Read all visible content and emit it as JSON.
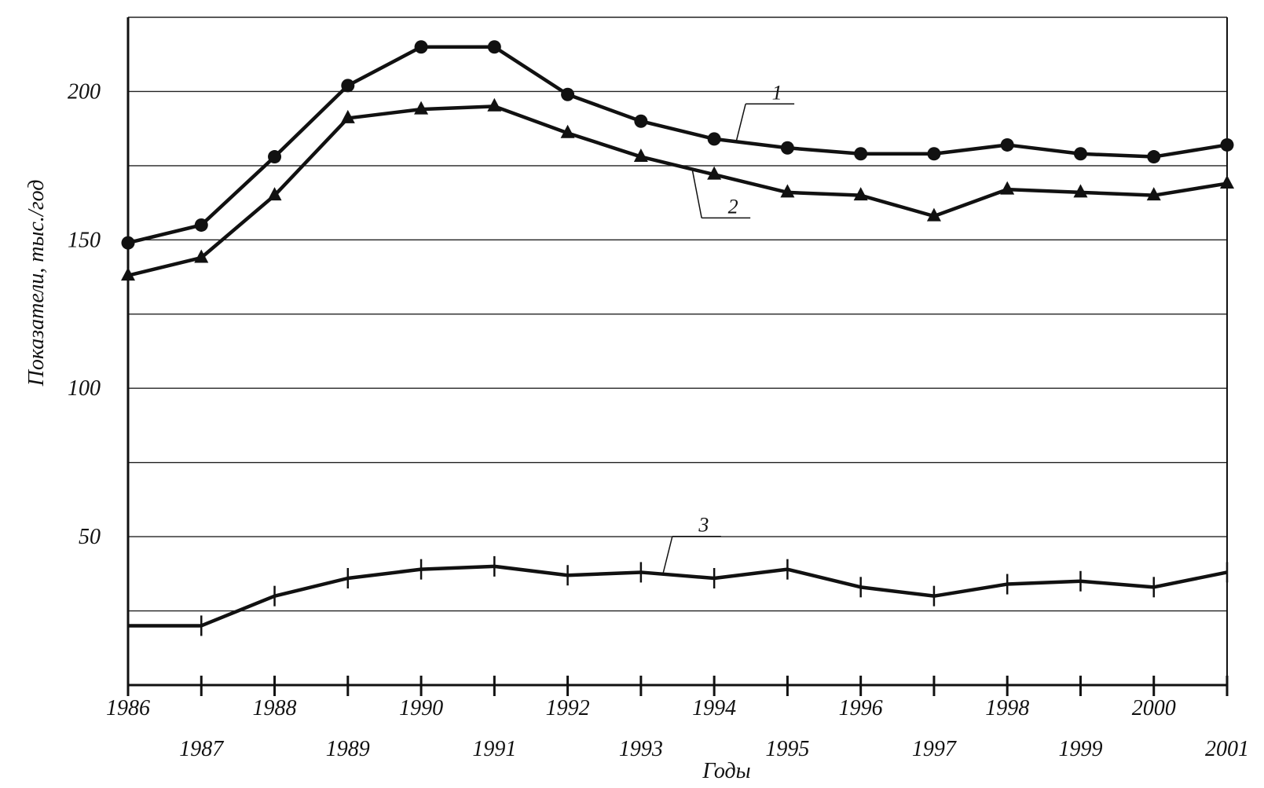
{
  "chart_data": {
    "type": "line",
    "title": "",
    "xlabel": "Годы",
    "ylabel": "Показатели, тыс./год",
    "x": [
      1986,
      1987,
      1988,
      1989,
      1990,
      1991,
      1992,
      1993,
      1994,
      1995,
      1996,
      1997,
      1998,
      1999,
      2000,
      2001
    ],
    "x_tick_labels": [
      "1986",
      "1987",
      "1988",
      "1989",
      "1990",
      "1991",
      "1992",
      "1993",
      "1994",
      "1995",
      "1996",
      "1997",
      "1998",
      "1999",
      "2000",
      "2001"
    ],
    "y_tick_values": [
      50,
      100,
      150,
      200
    ],
    "y_tick_labels": [
      "50",
      "100",
      "150",
      "200"
    ],
    "ylim": [
      0,
      225
    ],
    "xlim": [
      1986,
      2001
    ],
    "grid": true,
    "grid_step": 25,
    "series": [
      {
        "label": "1",
        "marker": "circle",
        "values": [
          149,
          155,
          178,
          202,
          215,
          215,
          199,
          190,
          184,
          181,
          179,
          179,
          182,
          179,
          178,
          182
        ]
      },
      {
        "label": "2",
        "marker": "triangle",
        "values": [
          138,
          144,
          165,
          191,
          194,
          195,
          186,
          178,
          172,
          166,
          165,
          158,
          167,
          166,
          165,
          169
        ]
      },
      {
        "label": "3",
        "marker": "tick",
        "values": [
          20,
          20,
          30,
          36,
          39,
          40,
          37,
          38,
          36,
          39,
          33,
          30,
          34,
          35,
          33,
          38
        ]
      }
    ],
    "colors": {
      "line": "#111111",
      "grid": "#222222",
      "background": "#ffffff"
    }
  }
}
